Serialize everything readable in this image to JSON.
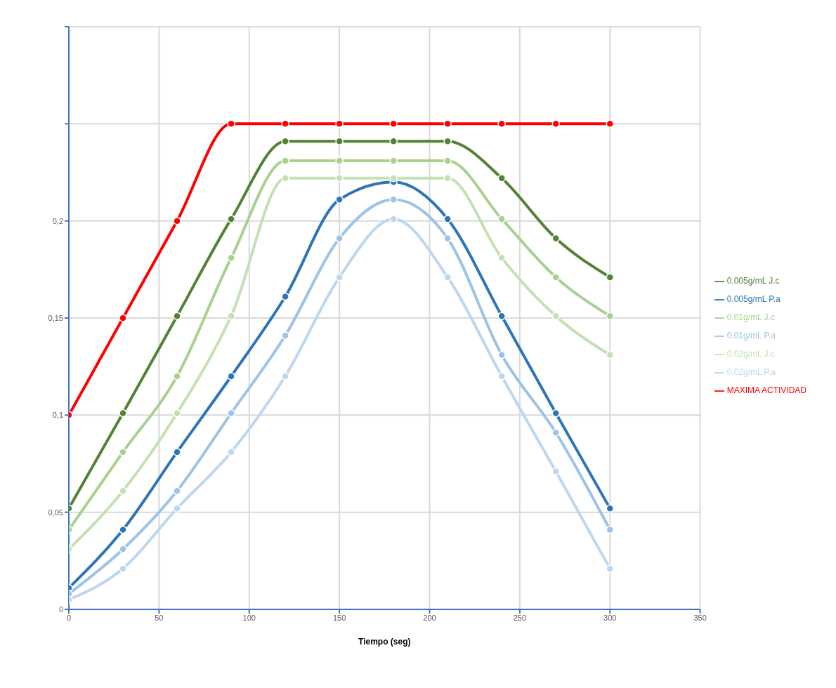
{
  "chart_data": {
    "type": "line",
    "xlabel": "Tiempo (seg)",
    "x": [
      0,
      30,
      60,
      90,
      120,
      150,
      180,
      210,
      240,
      270,
      300
    ],
    "xlim": [
      0,
      350
    ],
    "xticks": [
      0,
      50,
      100,
      150,
      200,
      250,
      300,
      350
    ],
    "ylim": [
      0,
      0.3
    ],
    "yticks": [
      {
        "value": 0,
        "label": "0"
      },
      {
        "value": 0.05,
        "label": "0,05"
      },
      {
        "value": 0.1,
        "label": "0,1"
      },
      {
        "value": 0.15,
        "label": "0,15"
      },
      {
        "value": 0.2,
        "label": "0,2"
      },
      {
        "value": 0.25,
        "label": null
      },
      {
        "value": 0.3,
        "label": null
      }
    ],
    "grid": true,
    "legend": "right",
    "marker": "circle",
    "line_style": "solid",
    "series": [
      {
        "name": "MAXIMA ACTIVIDAD",
        "color": "#ff0000",
        "values": [
          0.1,
          0.15,
          0.2,
          0.25,
          0.25,
          0.25,
          0.25,
          0.25,
          0.25,
          0.25,
          0.25
        ]
      },
      {
        "name": "0.005g/mL P.a",
        "color": "#2e75b6",
        "values": [
          0.011,
          0.041,
          0.081,
          0.12,
          0.161,
          0.211,
          0.22,
          0.201,
          0.151,
          0.101,
          0.052
        ]
      },
      {
        "name": "0.01g/mL P.a",
        "color": "#9dc3e6",
        "values": [
          0.008,
          0.031,
          0.061,
          0.101,
          0.141,
          0.191,
          0.211,
          0.191,
          0.131,
          0.091,
          0.041
        ]
      },
      {
        "name": "0.02g/mL P.a",
        "color": "#bdd7ee",
        "values": [
          0.005,
          0.021,
          0.052,
          0.081,
          0.12,
          0.171,
          0.201,
          0.171,
          0.12,
          0.071,
          0.021
        ]
      },
      {
        "name": "0.005g/mL J.c",
        "color": "#548235",
        "values": [
          0.052,
          0.101,
          0.151,
          0.201,
          0.241,
          0.241,
          0.241,
          0.241,
          0.222,
          0.191,
          0.171
        ]
      },
      {
        "name": "0.01g/mL J.c",
        "color": "#a9d18e",
        "values": [
          0.041,
          0.081,
          0.12,
          0.181,
          0.231,
          0.231,
          0.231,
          0.231,
          0.201,
          0.171,
          0.151
        ]
      },
      {
        "name": "0.02g/mL J.c",
        "color": "#c5e0b4",
        "values": [
          0.031,
          0.061,
          0.101,
          0.151,
          0.222,
          0.222,
          0.222,
          0.222,
          0.181,
          0.151,
          0.131
        ]
      }
    ]
  }
}
